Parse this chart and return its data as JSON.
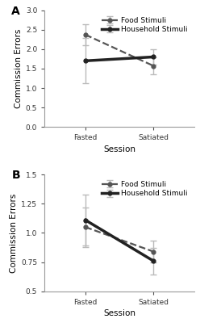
{
  "panel_A": {
    "label": "A",
    "food": {
      "x": [
        0,
        1
      ],
      "y": [
        2.37,
        1.57
      ],
      "yerr": [
        0.27,
        0.22
      ],
      "label": "Food Stimuli",
      "linestyle": "--",
      "color": "#555555",
      "linewidth": 1.6,
      "marker": "o",
      "markersize": 3.5
    },
    "household": {
      "x": [
        0,
        1
      ],
      "y": [
        1.7,
        1.8
      ],
      "yerr": [
        0.58,
        0.2
      ],
      "label": "Household Stimuli",
      "linestyle": "-",
      "color": "#222222",
      "linewidth": 2.5,
      "marker": "o",
      "markersize": 3.5
    },
    "ylabel": "Commission Errors",
    "xlabel": "Session",
    "xtick_labels": [
      "Fasted",
      "Satiated"
    ],
    "ylim": [
      0.0,
      3.0
    ],
    "yticks": [
      0.0,
      0.5,
      1.0,
      1.5,
      2.0,
      2.5,
      3.0
    ],
    "ytick_labels": [
      "0.0",
      "0.5",
      "1.0",
      "1.5",
      "2.0",
      "2.5",
      "3.0"
    ]
  },
  "panel_B": {
    "label": "B",
    "food": {
      "x": [
        0,
        1
      ],
      "y": [
        1.05,
        0.84
      ],
      "yerr": [
        0.17,
        0.095
      ],
      "label": "Food Stimuli",
      "linestyle": "--",
      "color": "#555555",
      "linewidth": 1.6,
      "marker": "o",
      "markersize": 3.5
    },
    "household": {
      "x": [
        0,
        1
      ],
      "y": [
        1.11,
        0.76
      ],
      "yerr": [
        0.215,
        0.115
      ],
      "label": "Household Stimuli",
      "linestyle": "-",
      "color": "#222222",
      "linewidth": 2.5,
      "marker": "o",
      "markersize": 3.5
    },
    "ylabel": "Commission Errors",
    "xlabel": "Session",
    "xtick_labels": [
      "Fasted",
      "Satiated"
    ],
    "ylim": [
      0.5,
      1.5
    ],
    "yticks": [
      0.5,
      0.75,
      1.0,
      1.25,
      1.5
    ],
    "ytick_labels": [
      "0.5",
      "0.75",
      "1.0",
      "1.25",
      "1.5"
    ]
  },
  "error_capsize": 3,
  "error_color": "#bbbbbb",
  "error_linewidth": 1.0,
  "background_color": "#ffffff",
  "legend_fontsize": 6.5,
  "axis_label_fontsize": 7.5,
  "tick_fontsize": 6.5,
  "panel_label_fontsize": 10
}
